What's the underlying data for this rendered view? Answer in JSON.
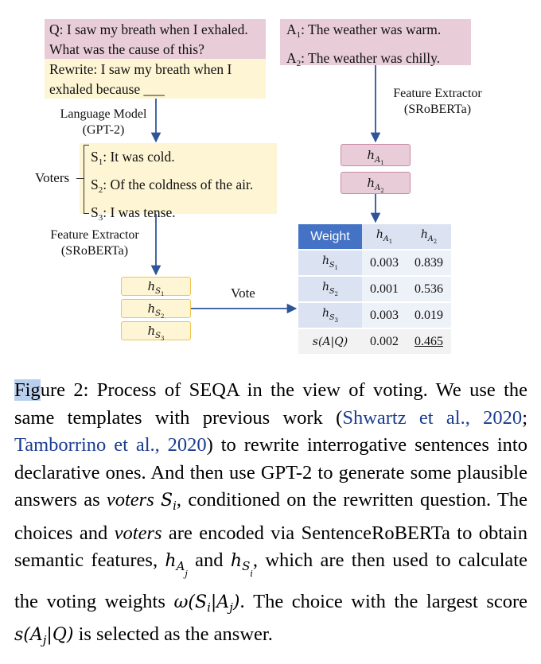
{
  "figure": {
    "question_box": {
      "line1": "Q: I saw my breath when I exhaled.",
      "line2": "What was the cause of this?"
    },
    "rewrite_box": {
      "line1": "Rewrite: I saw my breath when I",
      "line2": "exhaled because ___"
    },
    "answers": [
      {
        "prefix": "A",
        "sub": "1",
        "text": ": The weather was warm."
      },
      {
        "prefix": "A",
        "sub": "2",
        "text": ": The weather was chilly."
      }
    ],
    "feature_extractor_top": {
      "line1": "Feature Extractor",
      "line2": "(SRoBERTa)"
    },
    "language_model": {
      "line1": "Language Model",
      "line2": "(GPT-2)"
    },
    "voters_label": "Voters",
    "voters": [
      {
        "prefix": "S",
        "sub": "1",
        "text": ": It was cold."
      },
      {
        "prefix": "S",
        "sub": "2",
        "text": ": Of the coldness of the air."
      },
      {
        "prefix": "S",
        "sub": "3",
        "text": ": I was tense."
      }
    ],
    "feature_extractor_left": {
      "line1": "Feature Extractor",
      "line2": "(SRoBERTa)"
    },
    "vote_label": "Vote",
    "h_a": [
      {
        "base": "h",
        "s1": "A",
        "s2": "1"
      },
      {
        "base": "h",
        "s1": "A",
        "s2": "2"
      }
    ],
    "h_s": [
      {
        "base": "h",
        "s1": "S",
        "s2": "1"
      },
      {
        "base": "h",
        "s1": "S",
        "s2": "2"
      },
      {
        "base": "h",
        "s1": "S",
        "s2": "3"
      }
    ],
    "table": {
      "header": "Weight",
      "rows": [
        {
          "v1": "0.003",
          "v2": "0.839"
        },
        {
          "v1": "0.001",
          "v2": "0.536"
        },
        {
          "v1": "0.003",
          "v2": "0.019"
        }
      ],
      "score_label": "s(A|Q)",
      "score": {
        "v1": "0.002",
        "v2": "0.465"
      }
    }
  },
  "caption": {
    "fig_hl": "Fig",
    "t1": "ure 2: Process of SEQA in the view of voting. We use the same templates with previous work (",
    "cite1": "Shwartz et al., 2020",
    "t2": "; ",
    "cite2": "Tamborrino et al., 2020",
    "t3": ") to rewrite interrogative sentences into declarative ones. And then use GPT-2 to generate some plausible answers as ",
    "voters_word": "voters",
    "t4": "conditioned on the rewritten question. The choices and ",
    "voters_word2": "voters",
    "t5": " are encoded via SentenceRoBERTa to obtain semantic features, ",
    "t6": " and ",
    "t7": ", which are then used to calculate the voting weights ",
    "t8": ". The choice with the largest score ",
    "t9": " is selected as the answer."
  },
  "colors": {
    "pink": "#e8ccd8",
    "yellow": "#fdf5d3",
    "table_header": "#4472c4",
    "link": "#1a3d8f",
    "highlight": "#b9cfee"
  }
}
